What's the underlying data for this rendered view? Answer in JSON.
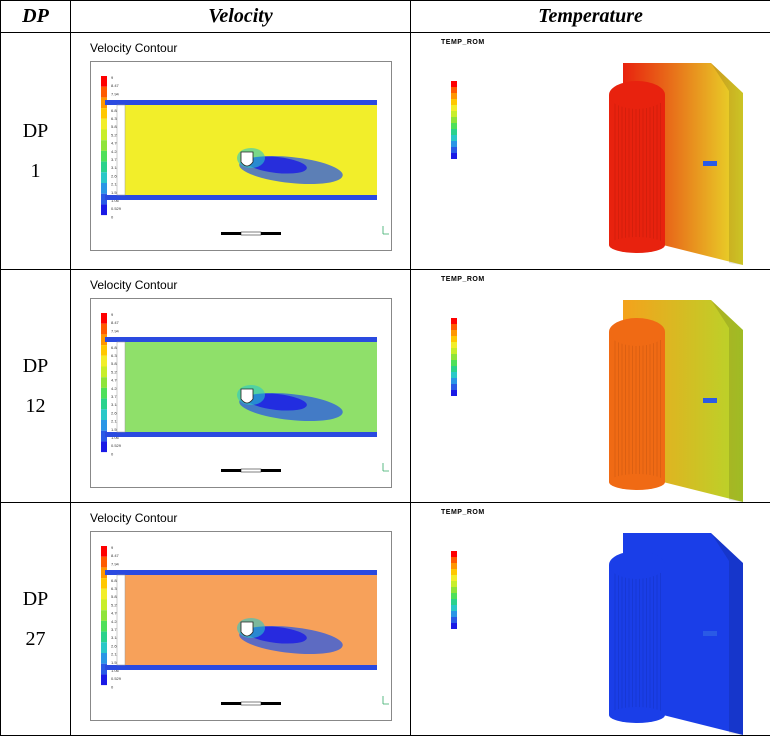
{
  "headers": {
    "dp": "DP",
    "velocity": "Velocity",
    "temperature": "Temperature"
  },
  "rows": [
    {
      "dp_prefix": "DP",
      "dp_number": "1",
      "velocity_title": "Velocity Contour",
      "temp_title": "TEMP_ROM",
      "flow_color": "#f2ee2a",
      "plate_left": "#e8220e",
      "plate_right": "#e8e02a",
      "cyl_color": "#e8220e"
    },
    {
      "dp_prefix": "DP",
      "dp_number": "12",
      "velocity_title": "Velocity Contour",
      "temp_title": "TEMP_ROM",
      "flow_color": "#8fe06a",
      "plate_left": "#f4a21c",
      "plate_right": "#b6d62a",
      "cyl_color": "#f06a14"
    },
    {
      "dp_prefix": "DP",
      "dp_number": "27",
      "velocity_title": "Velocity Contour",
      "temp_title": "TEMP_ROM",
      "flow_color": "#f7a15a",
      "plate_left": "#1a3ee8",
      "plate_right": "#1a3ee8",
      "cyl_color": "#1a3ee8"
    }
  ],
  "legend_colors": [
    "#ff0000",
    "#ff5a00",
    "#ff9600",
    "#ffc800",
    "#f2ee2a",
    "#c8ee2a",
    "#8ee43a",
    "#4ee05a",
    "#2ad28c",
    "#2ac8c8",
    "#2a96e6",
    "#2a5ae6",
    "#1a1ae6"
  ],
  "velocity_legend_labels": [
    "9",
    "8.47",
    "7.94",
    "7.41",
    "6.88",
    "6.35",
    "5.82",
    "5.29",
    "4.76",
    "4.24",
    "3.71",
    "3.18",
    "2.65",
    "2.12",
    "1.59",
    "1.06",
    "0.529",
    "0"
  ]
}
